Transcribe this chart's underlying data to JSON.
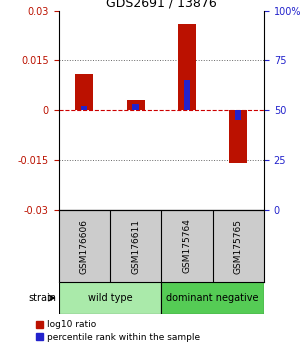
{
  "title": "GDS2691 / 13876",
  "samples": [
    "GSM176606",
    "GSM176611",
    "GSM175764",
    "GSM175765"
  ],
  "log10_ratio": [
    0.011,
    0.003,
    0.026,
    -0.016
  ],
  "percentile_rank": [
    52,
    53,
    65,
    45
  ],
  "groups": [
    {
      "label": "wild type",
      "samples": [
        0,
        1
      ],
      "color": "#aaeaaa"
    },
    {
      "label": "dominant negative",
      "samples": [
        2,
        3
      ],
      "color": "#55cc55"
    }
  ],
  "group_label": "strain",
  "ylim": [
    -0.03,
    0.03
  ],
  "yticks_left": [
    -0.03,
    -0.015,
    0,
    0.015,
    0.03
  ],
  "yticks_right_vals": [
    0,
    25,
    50,
    75,
    100
  ],
  "yticks_right_labels": [
    "0",
    "25",
    "50",
    "75",
    "100%"
  ],
  "bar_width": 0.35,
  "blue_bar_width": 0.12,
  "red_color": "#bb1100",
  "blue_color": "#2222cc",
  "zero_line_color": "#cc0000",
  "grid_color": "#666666",
  "bg_color": "#ffffff",
  "label_bg": "#cccccc",
  "legend_red_label": "log10 ratio",
  "legend_blue_label": "percentile rank within the sample"
}
